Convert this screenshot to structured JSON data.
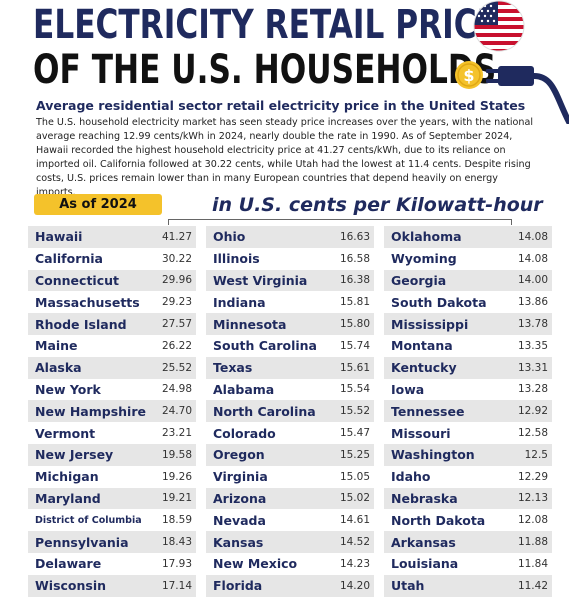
{
  "header": {
    "title_line1": "ELECTRICITY RETAIL PRICE",
    "title_line2": "OF THE U.S. HOUSEHOLDS",
    "subtitle": "Average residential sector retail electricity price in the United States",
    "description": "The U.S. household electricity market has seen steady price increases over the years, with the national average reaching 12.99 cents/kWh in 2024, nearly double the rate in 1990. As of September 2024, Hawaii recorded the highest household electricity price at 41.27 cents/kWh, due to its reliance on imported oil. California followed at 30.22 cents, while Utah had the lowest at 11.4 cents. Despite rising costs, U.S. prices remain lower than in many European countries that depend heavily on energy imports."
  },
  "badge": "As of 2024",
  "units": "in U.S. cents per Kilowatt-hour",
  "colors": {
    "navy": "#1f2a5e",
    "badge": "#f4c22b",
    "row_stripe": "#e6e6e6"
  },
  "icons": [
    "us-flag-icon",
    "dollar-coin-icon",
    "electric-plug-icon"
  ],
  "columns": [
    [
      {
        "state": "Hawaii",
        "value": "41.27"
      },
      {
        "state": "California",
        "value": "30.22"
      },
      {
        "state": "Connecticut",
        "value": "29.96"
      },
      {
        "state": "Massachusetts",
        "value": "29.23"
      },
      {
        "state": "Rhode Island",
        "value": "27.57"
      },
      {
        "state": "Maine",
        "value": "26.22"
      },
      {
        "state": "Alaska",
        "value": "25.52"
      },
      {
        "state": "New York",
        "value": "24.98"
      },
      {
        "state": "New Hampshire",
        "value": "24.70"
      },
      {
        "state": "Vermont",
        "value": "23.21"
      },
      {
        "state": "New Jersey",
        "value": "19.58"
      },
      {
        "state": "Michigan",
        "value": "19.26"
      },
      {
        "state": "Maryland",
        "value": "19.21"
      },
      {
        "state": "District of Columbia",
        "value": "18.59"
      },
      {
        "state": "Pennsylvania",
        "value": "18.43"
      },
      {
        "state": "Delaware",
        "value": "17.93"
      },
      {
        "state": "Wisconsin",
        "value": "17.14"
      }
    ],
    [
      {
        "state": "Ohio",
        "value": "16.63"
      },
      {
        "state": "Illinois",
        "value": "16.58"
      },
      {
        "state": "West Virginia",
        "value": "16.38"
      },
      {
        "state": "Indiana",
        "value": "15.81"
      },
      {
        "state": "Minnesota",
        "value": "15.80"
      },
      {
        "state": "South Carolina",
        "value": "15.74"
      },
      {
        "state": "Texas",
        "value": "15.61"
      },
      {
        "state": "Alabama",
        "value": "15.54"
      },
      {
        "state": "North Carolina",
        "value": "15.52"
      },
      {
        "state": "Colorado",
        "value": "15.47"
      },
      {
        "state": "Oregon",
        "value": "15.25"
      },
      {
        "state": "Virginia",
        "value": "15.05"
      },
      {
        "state": "Arizona",
        "value": "15.02"
      },
      {
        "state": "Nevada",
        "value": "14.61"
      },
      {
        "state": "Kansas",
        "value": "14.52"
      },
      {
        "state": "New Mexico",
        "value": "14.23"
      },
      {
        "state": "Florida",
        "value": "14.20"
      }
    ],
    [
      {
        "state": "Oklahoma",
        "value": "14.08"
      },
      {
        "state": "Wyoming",
        "value": "14.08"
      },
      {
        "state": "Georgia",
        "value": "14.00"
      },
      {
        "state": "South Dakota",
        "value": "13.86"
      },
      {
        "state": "Mississippi",
        "value": "13.78"
      },
      {
        "state": "Montana",
        "value": "13.35"
      },
      {
        "state": "Kentucky",
        "value": "13.31"
      },
      {
        "state": "Iowa",
        "value": "13.28"
      },
      {
        "state": "Tennessee",
        "value": "12.92"
      },
      {
        "state": "Missouri",
        "value": "12.58"
      },
      {
        "state": "Washington",
        "value": "12.5"
      },
      {
        "state": "Idaho",
        "value": "12.29"
      },
      {
        "state": "Nebraska",
        "value": "12.13"
      },
      {
        "state": "North Dakota",
        "value": "12.08"
      },
      {
        "state": "Arkansas",
        "value": "11.88"
      },
      {
        "state": "Louisiana",
        "value": "11.84"
      },
      {
        "state": "Utah",
        "value": "11.42"
      }
    ]
  ]
}
